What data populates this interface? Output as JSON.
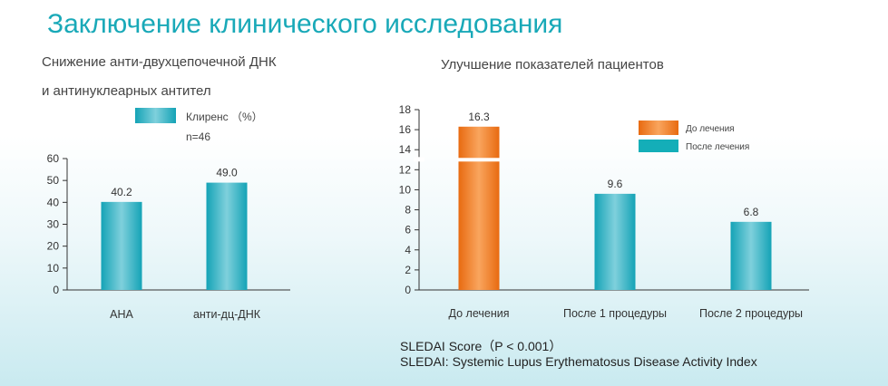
{
  "title": "Заключение клинического исследования",
  "left_subtitle_line1": "Снижение анти-двухцепочечной ДНК",
  "left_subtitle_line2": "и антинуклеарных антител",
  "right_subtitle": "Улучшение показателей пациентов",
  "footnote_line1": "SLEDAI Score（P < 0.001）",
  "footnote_line2": "SLEDAI: Systemic Lupus Erythematosus Disease Activity Index",
  "colors": {
    "title": "#19a9b8",
    "teal_bar": "#2cb4c6",
    "orange_bar": "#f07a1c"
  },
  "chart_data": [
    {
      "type": "bar",
      "categories": [
        "АНА",
        "анти-дц-ДНК"
      ],
      "series": [
        {
          "name": "Клиренс （%）",
          "values": [
            40.2,
            49.0
          ],
          "value_labels": [
            "40.2",
            "49.0"
          ]
        }
      ],
      "legend_note": "n=46",
      "ylim": [
        0,
        60
      ],
      "yticks": [
        0,
        10,
        20,
        30,
        40,
        50,
        60
      ],
      "grid": false
    },
    {
      "type": "bar",
      "categories": [
        "До лечения",
        "После 1 процедуры",
        "После 2 процедуры"
      ],
      "series": [
        {
          "name": "До лечения",
          "values": [
            16.3,
            null,
            null
          ],
          "value_labels": [
            "16.3",
            "",
            ""
          ]
        },
        {
          "name": "После лечения",
          "values": [
            null,
            9.6,
            6.8
          ],
          "value_labels": [
            "",
            "9.6",
            "6.8"
          ]
        }
      ],
      "ylim": [
        0,
        18
      ],
      "yticks": [
        0,
        2,
        4,
        6,
        8,
        10,
        12,
        14,
        16,
        18
      ],
      "grid": false
    }
  ]
}
